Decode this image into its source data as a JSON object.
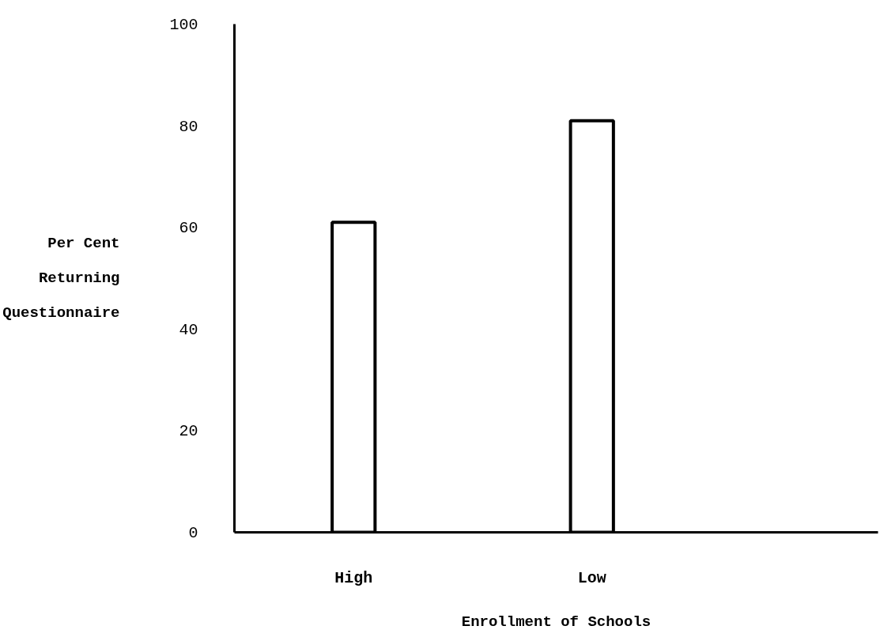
{
  "chart_data": {
    "type": "bar",
    "xlabel": "Enrollment of Schools",
    "ylabel": "Per Cent\nReturning\nQuestionnaire",
    "categories": [
      "High",
      "Low"
    ],
    "values": [
      61,
      81
    ],
    "color": "#ffffff",
    "ylim": [
      0,
      100
    ],
    "yticks": [
      0,
      20,
      40,
      60,
      80,
      100
    ],
    "grid": false
  }
}
